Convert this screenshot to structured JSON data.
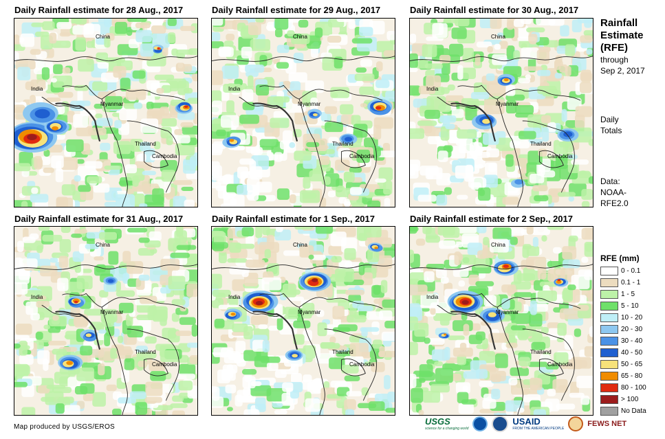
{
  "panels": [
    {
      "title": "Daily Rainfall estimate for 28 Aug., 2017"
    },
    {
      "title": "Daily Rainfall estimate for 29 Aug., 2017"
    },
    {
      "title": "Daily Rainfall estimate for 30 Aug., 2017"
    },
    {
      "title": "Daily Rainfall estimate for 31 Aug., 2017"
    },
    {
      "title": "Daily Rainfall estimate for 1 Sep., 2017"
    },
    {
      "title": "Daily Rainfall estimate for 2 Sep., 2017"
    }
  ],
  "countries": {
    "china": "China",
    "india": "India",
    "myanmar": "Myanmar",
    "thailand": "Thailand",
    "cambodia": "Cambodia"
  },
  "sidebar": {
    "title_line1": "Rainfall",
    "title_line2": "Estimate",
    "title_line3": "(RFE)",
    "through": "through",
    "date": "Sep 2, 2017",
    "daily1": "Daily",
    "daily2": "Totals",
    "data1": "Data:",
    "data2": "NOAA-",
    "data3": "RFE2.0"
  },
  "legend": {
    "title": "RFE (mm)",
    "items": [
      {
        "label": "0 - 0.1",
        "color": "#ffffff"
      },
      {
        "label": "0.1 - 1",
        "color": "#ecdcbf"
      },
      {
        "label": "1 - 5",
        "color": "#bdf2a8"
      },
      {
        "label": "5 - 10",
        "color": "#6fe06a"
      },
      {
        "label": "10 - 20",
        "color": "#bfeff7"
      },
      {
        "label": "20 - 30",
        "color": "#8ec8f0"
      },
      {
        "label": "30 - 40",
        "color": "#4b92e6"
      },
      {
        "label": "40 - 50",
        "color": "#1f5fd0"
      },
      {
        "label": "50 - 65",
        "color": "#f7e27a"
      },
      {
        "label": "65 - 80",
        "color": "#f08c00"
      },
      {
        "label": "80 - 100",
        "color": "#e02a10"
      },
      {
        "label": "> 100",
        "color": "#9c1c1c"
      },
      {
        "label": "No Data",
        "color": "#a0a0a0"
      }
    ]
  },
  "footer": {
    "credit": "Map produced by USGS/EROS",
    "usgs": "USGS",
    "usgs_tagline": "science for a changing world",
    "usaid": "USAID",
    "usaid_tagline": "FROM THE AMERICAN PEOPLE",
    "fews": "FEWS NET"
  }
}
